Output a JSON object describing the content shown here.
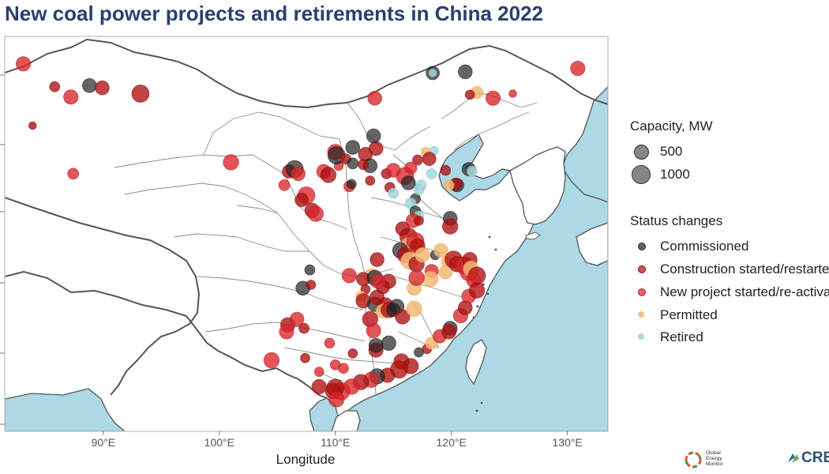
{
  "title": "New coal power projects and retirements in China 2022",
  "colors": {
    "Commissioned": "#222222",
    "Construction started/restarted": "#b01010",
    "New project started/re-activated": "#d8252a",
    "Permitted": "#f5b877",
    "Retired": "#a3d6dc",
    "sea": "#add8e6",
    "border": "#555555",
    "province": "#8c8c8c"
  },
  "axis": {
    "xlabel": "Longitude",
    "xticks": [
      "90°E",
      "100°E",
      "110°E",
      "120°E",
      "130°E"
    ],
    "xtick_values": [
      90,
      100,
      110,
      120,
      130
    ],
    "xlim": [
      81.5,
      133.5
    ],
    "ylim": [
      17.8,
      52.3
    ]
  },
  "legend": {
    "size_title": "Capacity, MW",
    "sizes": [
      {
        "label": "500",
        "mw": 500
      },
      {
        "label": "1000",
        "mw": 1000
      }
    ],
    "status_title": "Status changes",
    "statuses": [
      "Commissioned",
      "Construction started/restarted",
      "New project started/re-activated",
      "Permitted",
      "Retired"
    ]
  },
  "logos": {
    "gem": "Global Energy Monitor",
    "crea": "CREA"
  },
  "chart_data": {
    "type": "scatter",
    "title": "New coal power projects and retirements in China 2022",
    "xlabel": "Longitude",
    "ylabel": "",
    "grid": false,
    "legend_position": "right",
    "point_fields": [
      "lon",
      "lat",
      "capacity_mw",
      "status"
    ],
    "points": [
      [
        83.1,
        49.9,
        700,
        "New project started/re-activated"
      ],
      [
        85.8,
        47.9,
        350,
        "Construction started/restarted"
      ],
      [
        87.2,
        47.0,
        700,
        "New project started/re-activated"
      ],
      [
        88.8,
        48.0,
        660,
        "Commissioned"
      ],
      [
        89.9,
        47.8,
        660,
        "Construction started/restarted"
      ],
      [
        93.2,
        47.3,
        1000,
        "Construction started/restarted"
      ],
      [
        83.9,
        44.5,
        200,
        "Construction started/restarted"
      ],
      [
        87.4,
        40.3,
        400,
        "New project started/re-activated"
      ],
      [
        101.0,
        41.3,
        800,
        "New project started/re-activated"
      ],
      [
        106.0,
        40.5,
        600,
        "Construction started/restarted"
      ],
      [
        106.5,
        40.7,
        1000,
        "Commissioned"
      ],
      [
        106.8,
        40.3,
        660,
        "New project started/re-activated"
      ],
      [
        105.6,
        39.3,
        400,
        "New project started/re-activated"
      ],
      [
        107.5,
        38.4,
        1000,
        "New project started/re-activated"
      ],
      [
        108.0,
        37.1,
        700,
        "Construction started/restarted"
      ],
      [
        108.3,
        36.8,
        800,
        "New project started/re-activated"
      ],
      [
        107.1,
        38.0,
        600,
        "Construction started/restarted"
      ],
      [
        109.0,
        40.5,
        660,
        "New project started/re-activated"
      ],
      [
        109.4,
        40.2,
        800,
        "Construction started/restarted"
      ],
      [
        110.3,
        41.0,
        300,
        "New project started/re-activated"
      ],
      [
        110.0,
        42.2,
        800,
        "New project started/re-activated"
      ],
      [
        110.1,
        41.9,
        1000,
        "Commissioned"
      ],
      [
        110.9,
        41.6,
        350,
        "Construction started/restarted"
      ],
      [
        111.5,
        42.6,
        660,
        "Commissioned"
      ],
      [
        112.6,
        42.0,
        660,
        "Construction started/restarted"
      ],
      [
        113.0,
        41.0,
        660,
        "Commissioned"
      ],
      [
        113.5,
        42.5,
        660,
        "Construction started/restarted"
      ],
      [
        113.3,
        43.6,
        660,
        "Commissioned"
      ],
      [
        111.5,
        41.2,
        400,
        "Commissioned"
      ],
      [
        112.4,
        41.1,
        350,
        "Construction started/restarted"
      ],
      [
        111.2,
        39.2,
        400,
        "New project started/re-activated"
      ],
      [
        113.0,
        39.7,
        300,
        "Construction started/restarted"
      ],
      [
        114.4,
        40.3,
        350,
        "Construction started/restarted"
      ],
      [
        115.0,
        40.6,
        660,
        "New project started/re-activated"
      ],
      [
        114.7,
        39.1,
        350,
        "Construction started/restarted"
      ],
      [
        113.4,
        46.9,
        660,
        "New project started/re-activated"
      ],
      [
        118.4,
        49.1,
        600,
        "Commissioned"
      ],
      [
        118.4,
        49.1,
        200,
        "Retired"
      ],
      [
        121.2,
        49.2,
        660,
        "Commissioned"
      ],
      [
        122.2,
        47.4,
        500,
        "Permitted"
      ],
      [
        121.6,
        47.2,
        300,
        "Construction started/restarted"
      ],
      [
        123.6,
        46.9,
        700,
        "New project started/re-activated"
      ],
      [
        125.3,
        47.3,
        200,
        "New project started/re-activated"
      ],
      [
        130.9,
        49.5,
        700,
        "New project started/re-activated"
      ],
      [
        117.8,
        42.2,
        300,
        "Permitted"
      ],
      [
        118.5,
        42.3,
        250,
        "Retired"
      ],
      [
        118.1,
        41.6,
        600,
        "Construction started/restarted"
      ],
      [
        117.1,
        41.5,
        350,
        "Construction started/restarted"
      ],
      [
        118.3,
        40.3,
        350,
        "Retired"
      ],
      [
        119.5,
        40.6,
        350,
        "Construction started/restarted"
      ],
      [
        121.5,
        40.7,
        600,
        "Commissioned"
      ],
      [
        121.8,
        40.5,
        350,
        "Retired"
      ],
      [
        120.5,
        39.3,
        600,
        "Commissioned"
      ],
      [
        120.4,
        39.4,
        500,
        "Construction started/restarted"
      ],
      [
        119.8,
        39.3,
        350,
        "Permitted"
      ],
      [
        116.5,
        40.8,
        500,
        "New project started/re-activated"
      ],
      [
        116.0,
        40.1,
        1000,
        "New project started/re-activated"
      ],
      [
        117.4,
        39.3,
        350,
        "Retired"
      ],
      [
        116.3,
        39.5,
        660,
        "Commissioned"
      ],
      [
        115.0,
        38.6,
        350,
        "Retired"
      ],
      [
        116.9,
        38.1,
        350,
        "Commissioned"
      ],
      [
        117.2,
        38.9,
        350,
        "Retired"
      ],
      [
        116.5,
        37.7,
        400,
        "Retired"
      ],
      [
        116.9,
        37.0,
        400,
        "Commissioned"
      ],
      [
        117.2,
        36.6,
        350,
        "Retired"
      ],
      [
        119.9,
        36.4,
        660,
        "Commissioned"
      ],
      [
        119.9,
        35.7,
        800,
        "Construction started/restarted"
      ],
      [
        116.7,
        36.2,
        660,
        "New project started/re-activated"
      ],
      [
        115.8,
        35.5,
        660,
        "Construction started/restarted"
      ],
      [
        116.3,
        34.8,
        1000,
        "Construction started/restarted"
      ],
      [
        116.4,
        34.0,
        1000,
        "Permitted"
      ],
      [
        116.9,
        34.4,
        1000,
        "New project started/re-activated"
      ],
      [
        117.1,
        34.0,
        700,
        "Construction started/restarted"
      ],
      [
        115.6,
        33.6,
        800,
        "Commissioned"
      ],
      [
        116.0,
        33.2,
        800,
        "Construction started/restarted"
      ],
      [
        116.4,
        32.7,
        1000,
        "Permitted"
      ],
      [
        117.0,
        32.4,
        800,
        "Construction started/restarted"
      ],
      [
        117.5,
        33.2,
        700,
        "Permitted"
      ],
      [
        118.6,
        33.2,
        300,
        "Commissioned"
      ],
      [
        119.1,
        33.6,
        660,
        "Permitted"
      ],
      [
        119.6,
        32.6,
        400,
        "Permitted"
      ],
      [
        119.5,
        31.7,
        600,
        "Permitted"
      ],
      [
        120.2,
        32.8,
        1000,
        "Construction started/restarted"
      ],
      [
        120.5,
        32.4,
        800,
        "Construction started/restarted"
      ],
      [
        121.1,
        32.3,
        1000,
        "New project started/re-activated"
      ],
      [
        121.6,
        32.8,
        700,
        "Construction started/restarted"
      ],
      [
        121.5,
        31.7,
        1000,
        "New project started/re-activated"
      ],
      [
        121.7,
        32.0,
        800,
        "Permitted"
      ],
      [
        122.2,
        31.4,
        1000,
        "Construction started/restarted"
      ],
      [
        121.9,
        31.0,
        660,
        "New project started/re-activated"
      ],
      [
        118.3,
        31.8,
        600,
        "New project started/re-activated"
      ],
      [
        118.2,
        31.1,
        800,
        "Permitted"
      ],
      [
        116.8,
        30.3,
        700,
        "Permitted"
      ],
      [
        117.0,
        31.2,
        800,
        "New project started/re-activated"
      ],
      [
        113.6,
        32.8,
        660,
        "Construction started/restarted"
      ],
      [
        113.1,
        31.4,
        660,
        "Permitted"
      ],
      [
        114.6,
        30.9,
        700,
        "Construction started/restarted"
      ],
      [
        114.1,
        30.4,
        600,
        "Construction started/restarted"
      ],
      [
        112.6,
        30.2,
        300,
        "Construction started/restarted"
      ],
      [
        111.2,
        31.4,
        700,
        "New project started/re-activated"
      ],
      [
        112.4,
        31.1,
        600,
        "Construction started/restarted"
      ],
      [
        112.2,
        29.6,
        350,
        "Permitted"
      ],
      [
        113.4,
        31.2,
        800,
        "Commissioned"
      ],
      [
        113.7,
        30.9,
        700,
        "New project started/re-activated"
      ],
      [
        112.4,
        29.2,
        700,
        "Construction started/restarted"
      ],
      [
        113.4,
        28.9,
        700,
        "Commissioned"
      ],
      [
        113.6,
        29.5,
        700,
        "Construction started/restarted"
      ],
      [
        114.3,
        28.8,
        800,
        "Construction started/restarted"
      ],
      [
        114.1,
        28.3,
        660,
        "Permitted"
      ],
      [
        114.6,
        28.4,
        800,
        "Construction started/restarted"
      ],
      [
        115.3,
        28.7,
        700,
        "Commissioned"
      ],
      [
        115.0,
        28.4,
        600,
        "Commissioned"
      ],
      [
        115.8,
        27.8,
        700,
        "Construction started/restarted"
      ],
      [
        116.8,
        28.5,
        800,
        "Permitted"
      ],
      [
        113.0,
        27.6,
        800,
        "Construction started/restarted"
      ],
      [
        113.3,
        26.6,
        700,
        "New project started/re-activated"
      ],
      [
        113.5,
        24.9,
        700,
        "Construction started/restarted"
      ],
      [
        113.5,
        25.3,
        660,
        "Commissioned"
      ],
      [
        114.6,
        25.5,
        700,
        "Commissioned"
      ],
      [
        115.7,
        23.9,
        800,
        "Construction started/restarted"
      ],
      [
        117.2,
        24.7,
        300,
        "Commissioned"
      ],
      [
        117.9,
        25.0,
        300,
        "Construction started/restarted"
      ],
      [
        118.3,
        25.5,
        500,
        "Permitted"
      ],
      [
        119.0,
        26.1,
        600,
        "New project started/re-activated"
      ],
      [
        119.9,
        26.8,
        660,
        "Commissioned"
      ],
      [
        119.8,
        26.5,
        700,
        "Construction started/restarted"
      ],
      [
        120.8,
        27.9,
        700,
        "New project started/re-activated"
      ],
      [
        121.2,
        28.6,
        660,
        "Construction started/restarted"
      ],
      [
        121.5,
        29.6,
        660,
        "New project started/re-activated"
      ],
      [
        122.2,
        30.1,
        800,
        "Construction started/restarted"
      ],
      [
        116.5,
        23.5,
        800,
        "Construction started/restarted"
      ],
      [
        115.5,
        23.2,
        1000,
        "Construction started/restarted"
      ],
      [
        114.5,
        22.7,
        700,
        "Construction started/restarted"
      ],
      [
        113.6,
        22.6,
        800,
        "Commissioned"
      ],
      [
        113.1,
        22.3,
        800,
        "New project started/re-activated"
      ],
      [
        112.2,
        22.1,
        800,
        "Construction started/restarted"
      ],
      [
        111.4,
        21.7,
        800,
        "New project started/re-activated"
      ],
      [
        110.5,
        21.3,
        1000,
        "New project started/re-activated"
      ],
      [
        110.0,
        21.6,
        1000,
        "Construction started/restarted"
      ],
      [
        109.8,
        21.3,
        800,
        "Construction started/restarted"
      ],
      [
        110.1,
        20.6,
        800,
        "New project started/re-activated"
      ],
      [
        108.6,
        21.7,
        700,
        "Construction started/restarted"
      ],
      [
        108.6,
        23.0,
        300,
        "New project started/re-activated"
      ],
      [
        110.7,
        23.3,
        350,
        "New project started/re-activated"
      ],
      [
        110.0,
        23.6,
        350,
        "New project started/re-activated"
      ],
      [
        111.5,
        24.6,
        300,
        "Construction started/restarted"
      ],
      [
        109.5,
        25.5,
        350,
        "New project started/re-activated"
      ],
      [
        107.2,
        30.3,
        660,
        "Commissioned"
      ],
      [
        107.9,
        30.6,
        300,
        "Construction started/restarted"
      ],
      [
        107.8,
        31.9,
        350,
        "Commissioned"
      ],
      [
        105.9,
        27.1,
        700,
        "Construction started/restarted"
      ],
      [
        106.7,
        27.6,
        660,
        "New project started/re-activated"
      ],
      [
        105.8,
        26.5,
        700,
        "New project started/re-activated"
      ],
      [
        107.3,
        26.8,
        350,
        "Construction started/restarted"
      ],
      [
        104.5,
        24.0,
        800,
        "New project started/re-activated"
      ],
      [
        107.4,
        24.2,
        300,
        "Construction started/restarted"
      ],
      [
        111.4,
        39.4,
        300,
        "Commissioned"
      ],
      [
        117.2,
        36.2,
        300,
        "Construction started/restarted"
      ]
    ]
  }
}
